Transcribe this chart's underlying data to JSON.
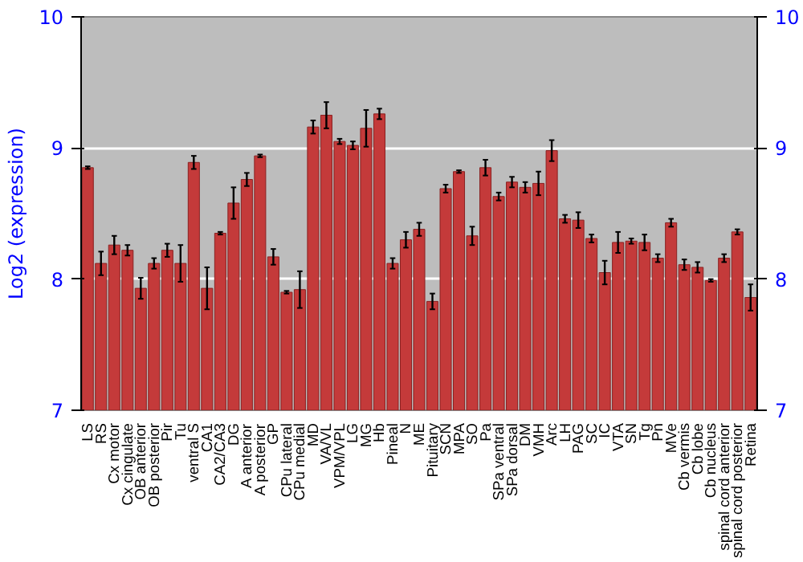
{
  "chart_data": {
    "type": "bar",
    "ylabel": "Log2 (expression)",
    "categories": [
      "LS",
      "RS",
      "Cx motor",
      "Cx cingulate",
      "OB anterior",
      "OB posterior",
      "Pir",
      "Tu",
      "ventral S",
      "CA1",
      "CA2/CA3",
      "DG",
      "A anterior",
      "A posterior",
      "GP",
      "CPu lateral",
      "CPu medial",
      "MD",
      "VA/VL",
      "VPM/VPL",
      "LG",
      "MG",
      "Hb",
      "Pineal",
      "N",
      "ME",
      "Pituitary",
      "SCN",
      "MPA",
      "SO",
      "Pa",
      "SPa ventral",
      "SPa dorsal",
      "DM",
      "VMH",
      "Arc",
      "LH",
      "PAG",
      "SC",
      "IC",
      "VTA",
      "SN",
      "Tg",
      "Pn",
      "MVe",
      "Cb vermis",
      "Cb lobe",
      "Cb nucleus",
      "spinal cord anterior",
      "spinal cord posterior",
      "Retina"
    ],
    "values": [
      8.85,
      8.12,
      8.26,
      8.22,
      7.93,
      8.12,
      8.22,
      8.12,
      8.89,
      7.93,
      8.35,
      8.58,
      8.76,
      8.94,
      8.17,
      7.9,
      7.92,
      9.16,
      9.25,
      9.05,
      9.02,
      9.15,
      9.26,
      8.12,
      8.3,
      8.38,
      7.83,
      8.69,
      8.82,
      8.33,
      8.85,
      8.63,
      8.74,
      8.7,
      8.73,
      8.98,
      8.46,
      8.45,
      8.31,
      8.05,
      8.28,
      8.29,
      8.28,
      8.16,
      8.43,
      8.11,
      8.09,
      7.99,
      8.16,
      8.36,
      7.86
    ],
    "errors": [
      0.01,
      0.09,
      0.07,
      0.04,
      0.08,
      0.04,
      0.05,
      0.14,
      0.05,
      0.16,
      0.01,
      0.12,
      0.05,
      0.01,
      0.06,
      0.01,
      0.14,
      0.05,
      0.1,
      0.02,
      0.03,
      0.14,
      0.04,
      0.04,
      0.06,
      0.05,
      0.06,
      0.03,
      0.01,
      0.07,
      0.06,
      0.03,
      0.04,
      0.04,
      0.09,
      0.08,
      0.03,
      0.06,
      0.03,
      0.09,
      0.08,
      0.02,
      0.06,
      0.03,
      0.03,
      0.04,
      0.04,
      0.01,
      0.03,
      0.02,
      0.1
    ],
    "color": "#c43a3a",
    "ylim": [
      7,
      10
    ],
    "yticks": [
      7,
      8,
      9,
      10
    ],
    "y2lim": [
      7,
      10
    ],
    "y2ticks": [
      7,
      8,
      9,
      10
    ],
    "grid": "y"
  }
}
